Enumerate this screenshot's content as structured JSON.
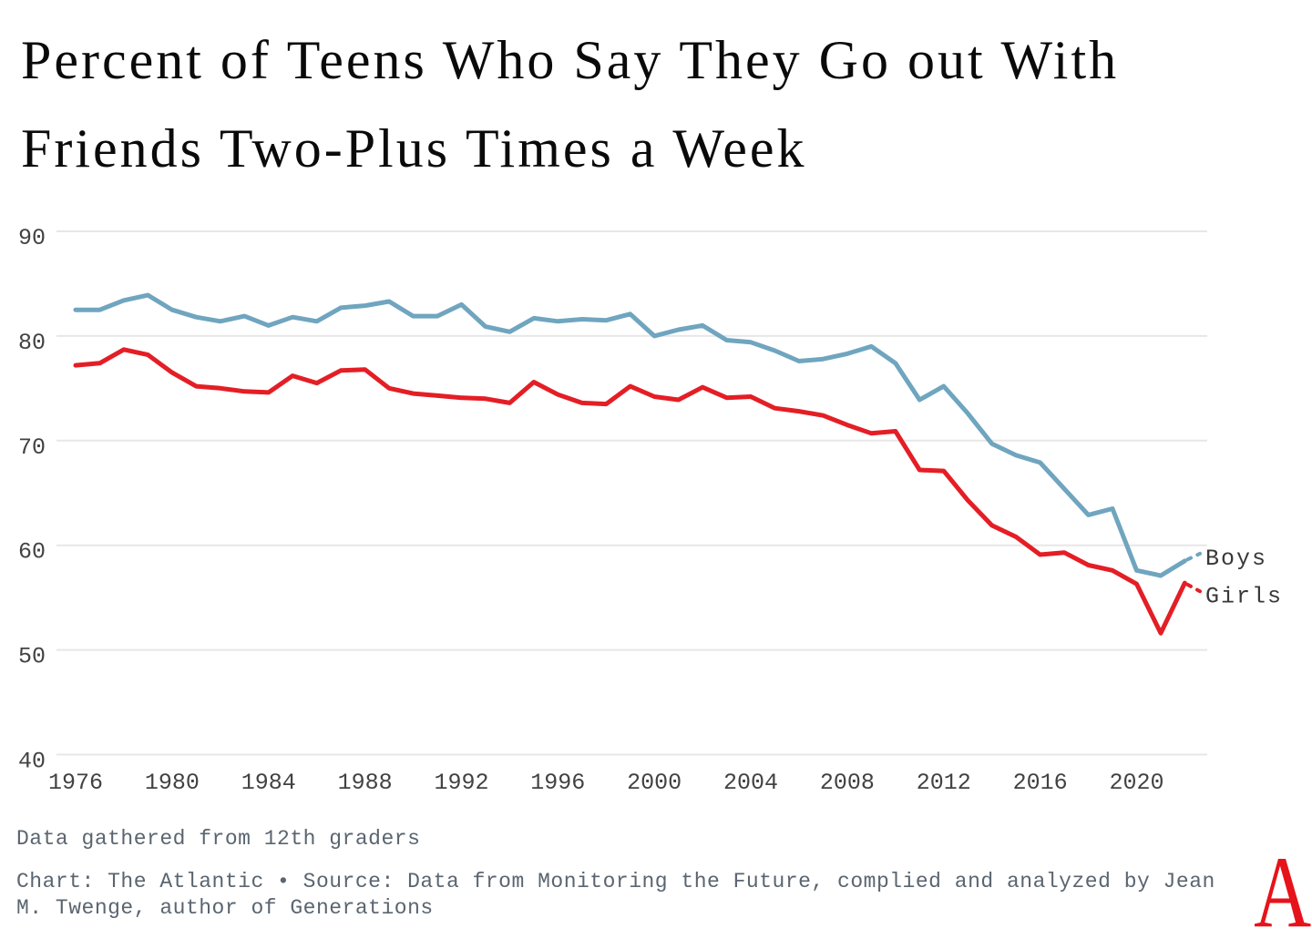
{
  "page": {
    "title_line1": "Percent of Teens Who Say They Go out With",
    "title_line2": "Friends Two-Plus Times a Week"
  },
  "chart_data": {
    "type": "line",
    "title": "Percent of Teens Who Say They Go out With Friends Two-Plus Times a Week",
    "x": [
      1976,
      1977,
      1978,
      1979,
      1980,
      1981,
      1982,
      1983,
      1984,
      1985,
      1986,
      1987,
      1988,
      1989,
      1990,
      1991,
      1992,
      1993,
      1994,
      1995,
      1996,
      1997,
      1998,
      1999,
      2000,
      2001,
      2002,
      2003,
      2004,
      2005,
      2006,
      2007,
      2008,
      2009,
      2010,
      2011,
      2012,
      2013,
      2014,
      2015,
      2016,
      2017,
      2018,
      2019,
      2020,
      2021,
      2022
    ],
    "series": [
      {
        "name": "Boys",
        "color": "#6fa5bf",
        "label_at": 59.2,
        "values": [
          82.5,
          82.5,
          83.4,
          83.9,
          82.5,
          81.8,
          81.4,
          81.9,
          81.0,
          81.8,
          81.4,
          82.7,
          82.9,
          83.3,
          81.9,
          81.9,
          83.0,
          80.9,
          80.4,
          81.7,
          81.4,
          81.6,
          81.5,
          82.1,
          80.0,
          80.6,
          81.0,
          79.6,
          79.4,
          78.6,
          77.6,
          77.8,
          78.3,
          79.0,
          77.4,
          73.9,
          75.2,
          72.6,
          69.7,
          68.6,
          67.9,
          65.4,
          62.9,
          63.5,
          57.6,
          57.1,
          58.5
        ]
      },
      {
        "name": "Girls",
        "color": "#e41e25",
        "label_at": 55.6,
        "values": [
          77.2,
          77.4,
          78.7,
          78.2,
          76.5,
          75.2,
          75.0,
          74.7,
          74.6,
          76.2,
          75.5,
          76.7,
          76.8,
          75.0,
          74.5,
          74.3,
          74.1,
          74.0,
          73.6,
          75.6,
          74.4,
          73.6,
          73.5,
          75.2,
          74.2,
          73.9,
          75.1,
          74.1,
          74.2,
          73.1,
          72.8,
          72.4,
          71.5,
          70.7,
          70.9,
          67.2,
          67.1,
          64.3,
          61.9,
          60.8,
          59.1,
          59.3,
          58.1,
          57.6,
          56.3,
          51.6,
          56.4
        ]
      }
    ],
    "ylim": [
      40,
      90
    ],
    "yticks": [
      90,
      80,
      70,
      60,
      50,
      40
    ],
    "xticks": [
      1976,
      1980,
      1984,
      1988,
      1992,
      1996,
      2000,
      2004,
      2008,
      2012,
      2016,
      2020
    ],
    "grid": "horizontal",
    "legend_position": "end-of-line-labels"
  },
  "footer": {
    "note": "Data gathered from 12th graders",
    "source_line1": "Chart: The Atlantic • Source: Data from Monitoring the Future, complied and analyzed by Jean",
    "source_line2": "M. Twenge, author of Generations",
    "logo_letter": "A"
  },
  "colors": {
    "title_text": "#0a0a0a",
    "axis_label": "#424242",
    "series_label": "#383838",
    "gridline": "#e7e7e7",
    "footer_text": "#5a6570",
    "logo_red": "#e7131a",
    "boys_line": "#6fa5bf",
    "girls_line": "#e41e25"
  }
}
